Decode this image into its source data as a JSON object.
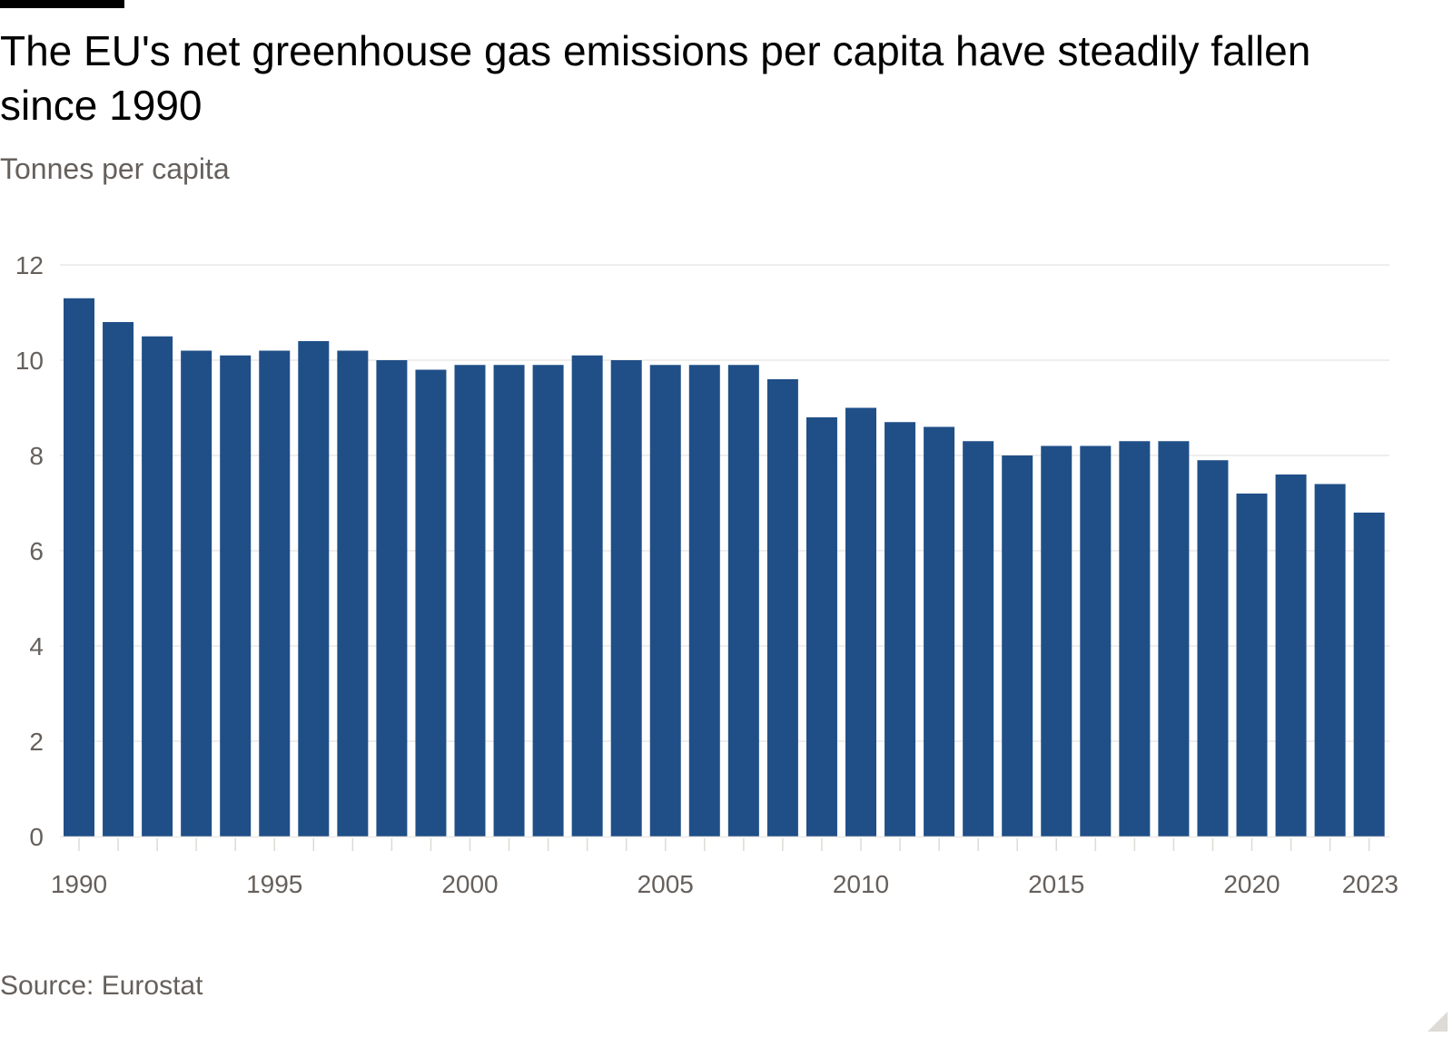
{
  "title": "The EU's net greenhouse gas emissions per capita have steadily fallen since 1990",
  "subtitle": "Tonnes per capita",
  "source": "Source: Eurostat",
  "colors": {
    "bar": "#204f88",
    "grid": "#ece9e6",
    "text": "#66605c"
  },
  "chart_data": {
    "type": "bar",
    "title": "The EU's net greenhouse gas emissions per capita have steadily fallen since 1990",
    "ylabel": "Tonnes per capita",
    "xlabel": "",
    "ylim": [
      0,
      12
    ],
    "yticks": [
      0,
      2,
      4,
      6,
      8,
      10,
      12
    ],
    "xtick_labels": [
      "1990",
      "1995",
      "2000",
      "2005",
      "2010",
      "2015",
      "2020",
      "2023"
    ],
    "grid": true,
    "categories": [
      "1990",
      "1991",
      "1992",
      "1993",
      "1994",
      "1995",
      "1996",
      "1997",
      "1998",
      "1999",
      "2000",
      "2001",
      "2002",
      "2003",
      "2004",
      "2005",
      "2006",
      "2007",
      "2008",
      "2009",
      "2010",
      "2011",
      "2012",
      "2013",
      "2014",
      "2015",
      "2016",
      "2017",
      "2018",
      "2019",
      "2020",
      "2021",
      "2022",
      "2023"
    ],
    "values": [
      11.3,
      10.8,
      10.5,
      10.2,
      10.1,
      10.2,
      10.4,
      10.2,
      10.0,
      9.8,
      9.9,
      9.9,
      9.9,
      10.1,
      10.0,
      9.9,
      9.9,
      9.9,
      9.6,
      8.8,
      9.0,
      8.7,
      8.6,
      8.3,
      8.0,
      8.2,
      8.2,
      8.3,
      8.3,
      7.9,
      7.2,
      7.6,
      7.4,
      6.8
    ]
  }
}
